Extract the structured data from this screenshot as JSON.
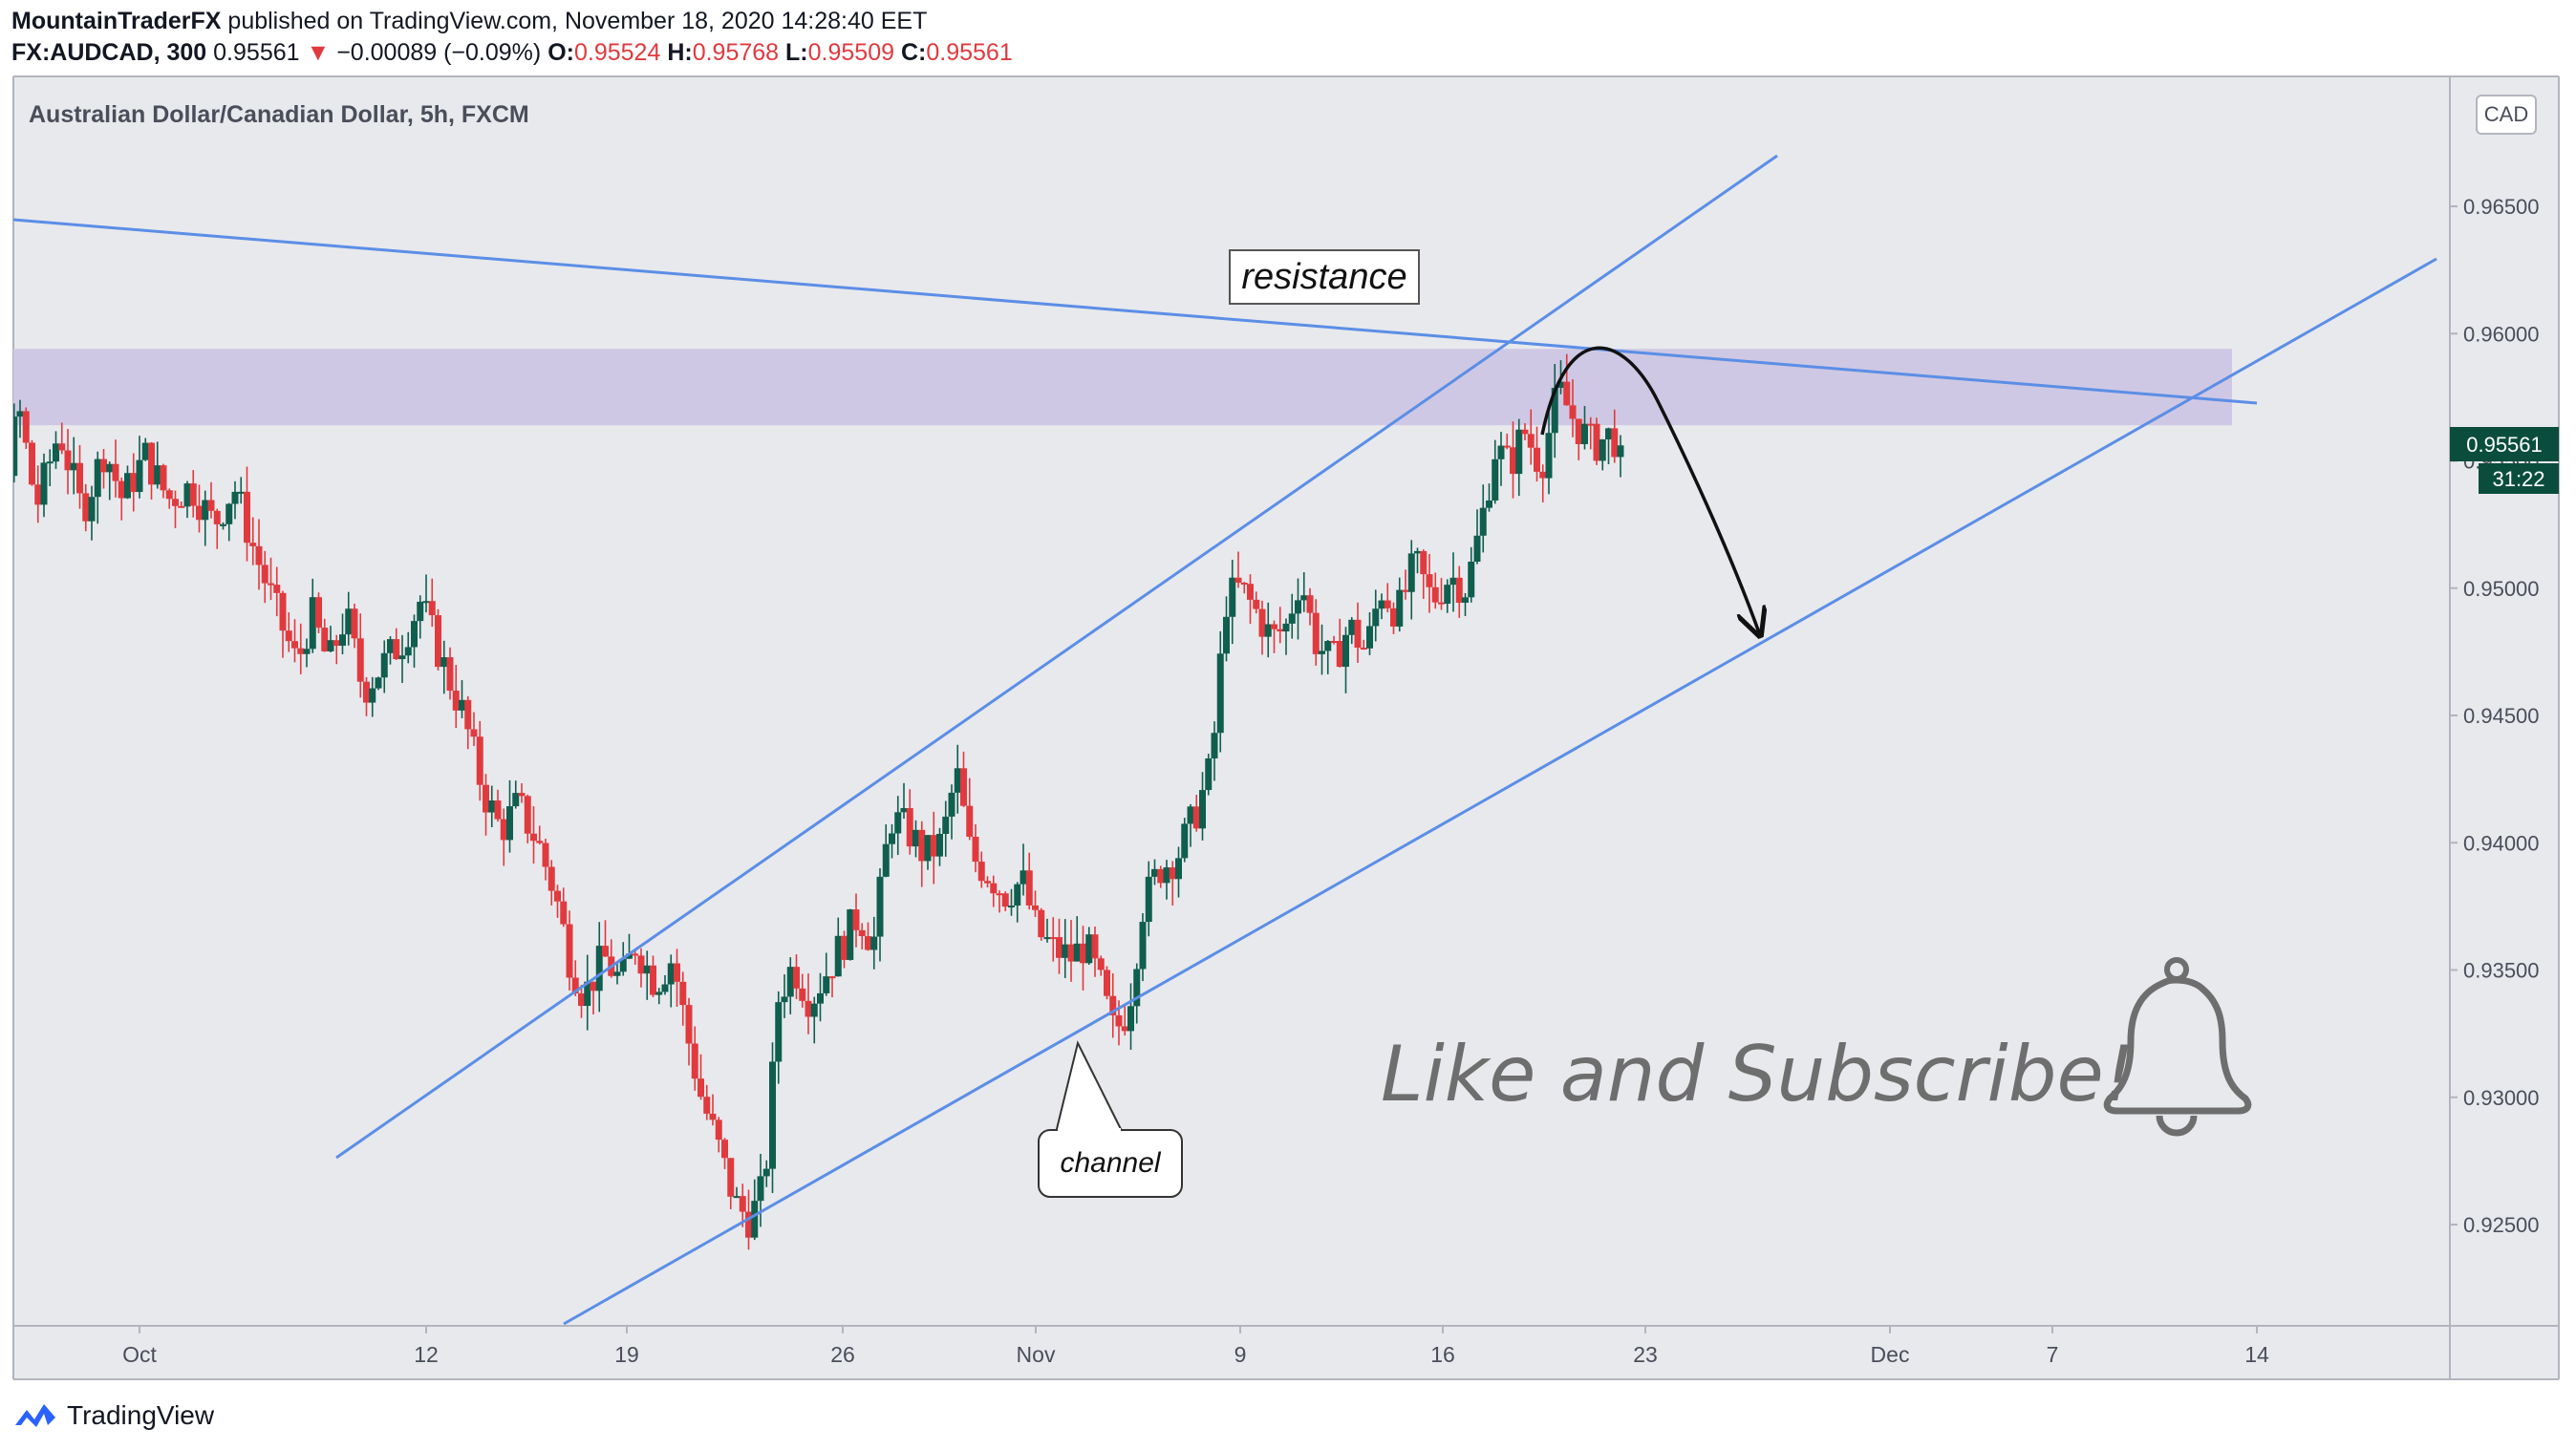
{
  "header": {
    "publisher": "MountainTraderFX",
    "published_text": " published on TradingView.com, November 18, 2020 14:28:40 EET",
    "symbol": "FX:AUDCAD, 300",
    "last": "0.95561",
    "change_arrow": "▼",
    "change": "−0.00089 (−0.09%)",
    "o_label": "O:",
    "o_value": "0.95524",
    "h_label": "H:",
    "h_value": "0.95768",
    "l_label": "L:",
    "l_value": "0.95509",
    "c_label": "C:",
    "c_value": "0.95561"
  },
  "footer": {
    "brand": "TradingView",
    "logo_icon": "tradingview-logo-icon"
  },
  "colors": {
    "up": "#26a69a",
    "down": "#ef5350",
    "candle_up": "#0f5e4e",
    "candle_down": "#e03a3e",
    "trendline": "#5b8ee6",
    "zone": "#cfc8e4",
    "background": "#ffffff",
    "label": "#131722",
    "price_badge": "#0b4d3c"
  },
  "chart_data": {
    "type": "candlestick",
    "title": "Australian Dollar/Canadian Dollar, 5h, FXCM",
    "currency": "CAD",
    "x_labels": [
      "Oct",
      "12",
      "19",
      "26",
      "Nov",
      "9",
      "16",
      "23",
      "Dec",
      "7",
      "14"
    ],
    "y_ticks": [
      "0.96500",
      "0.96000",
      "0.95500",
      "0.95000",
      "0.94500",
      "0.94000",
      "0.93500",
      "0.93000",
      "0.92500"
    ],
    "ylim": [
      0.92,
      0.97
    ],
    "last_price": "0.95561",
    "countdown": "31:22",
    "resistance_zone": [
      0.9564,
      0.9594
    ],
    "path_days": [
      [
        -7.5,
        0.9405
      ],
      [
        -6.8,
        0.9445
      ],
      [
        -5.8,
        0.9555
      ],
      [
        -5.2,
        0.9575
      ],
      [
        -4.8,
        0.954
      ],
      [
        -4.2,
        0.957
      ],
      [
        -3.6,
        0.9532
      ],
      [
        -2.8,
        0.9562
      ],
      [
        -2.0,
        0.953
      ],
      [
        -1.2,
        0.9555
      ],
      [
        -0.6,
        0.9535
      ],
      [
        0.2,
        0.9552
      ],
      [
        1.0,
        0.9535
      ],
      [
        1.8,
        0.954
      ],
      [
        2.6,
        0.9525
      ],
      [
        3.3,
        0.954
      ],
      [
        4.0,
        0.9515
      ],
      [
        4.8,
        0.949
      ],
      [
        5.5,
        0.947
      ],
      [
        6.0,
        0.949
      ],
      [
        6.6,
        0.947
      ],
      [
        7.2,
        0.949
      ],
      [
        7.8,
        0.946
      ],
      [
        8.5,
        0.947
      ],
      [
        9.2,
        0.948
      ],
      [
        9.8,
        0.9495
      ],
      [
        10.6,
        0.947
      ],
      [
        11.3,
        0.945
      ],
      [
        12.0,
        0.942
      ],
      [
        12.6,
        0.9405
      ],
      [
        13.2,
        0.9415
      ],
      [
        13.9,
        0.94
      ],
      [
        14.5,
        0.938
      ],
      [
        15.0,
        0.9355
      ],
      [
        15.5,
        0.934
      ],
      [
        16.2,
        0.9355
      ],
      [
        16.8,
        0.9345
      ],
      [
        17.3,
        0.936
      ],
      [
        18.0,
        0.9345
      ],
      [
        18.6,
        0.9355
      ],
      [
        19.1,
        0.9325
      ],
      [
        19.6,
        0.93
      ],
      [
        20.2,
        0.928
      ],
      [
        20.8,
        0.9258
      ],
      [
        21.3,
        0.9252
      ],
      [
        21.8,
        0.9265
      ],
      [
        22.3,
        0.934
      ],
      [
        22.8,
        0.9352
      ],
      [
        23.4,
        0.9338
      ],
      [
        24.0,
        0.935
      ],
      [
        24.6,
        0.9362
      ],
      [
        25.1,
        0.9372
      ],
      [
        25.6,
        0.936
      ],
      [
        26.2,
        0.941
      ],
      [
        26.8,
        0.9405
      ],
      [
        27.4,
        0.9395
      ],
      [
        28.0,
        0.94
      ],
      [
        28.5,
        0.9428
      ],
      [
        29.0,
        0.9395
      ],
      [
        29.6,
        0.9388
      ],
      [
        30.2,
        0.938
      ],
      [
        30.8,
        0.9385
      ],
      [
        31.3,
        0.9365
      ],
      [
        31.9,
        0.9358
      ],
      [
        32.5,
        0.9355
      ],
      [
        33.0,
        0.936
      ],
      [
        33.5,
        0.9345
      ],
      [
        34.0,
        0.9325
      ],
      [
        34.5,
        0.9335
      ],
      [
        35.0,
        0.9375
      ],
      [
        35.6,
        0.939
      ],
      [
        36.2,
        0.9395
      ],
      [
        36.8,
        0.941
      ],
      [
        37.4,
        0.943
      ],
      [
        37.9,
        0.9495
      ],
      [
        38.4,
        0.95
      ],
      [
        39.0,
        0.949
      ],
      [
        39.5,
        0.948
      ],
      [
        40.0,
        0.9485
      ],
      [
        40.5,
        0.9505
      ],
      [
        41.0,
        0.948
      ],
      [
        41.6,
        0.947
      ],
      [
        42.2,
        0.9485
      ],
      [
        42.8,
        0.9475
      ],
      [
        43.3,
        0.95
      ],
      [
        43.9,
        0.949
      ],
      [
        44.5,
        0.951
      ],
      [
        45.1,
        0.9495
      ],
      [
        45.7,
        0.9505
      ],
      [
        46.3,
        0.95
      ],
      [
        46.8,
        0.9525
      ],
      [
        47.3,
        0.9555
      ],
      [
        47.8,
        0.9548
      ],
      [
        48.3,
        0.9562
      ],
      [
        48.9,
        0.9548
      ],
      [
        49.5,
        0.9578
      ],
      [
        50.1,
        0.9565
      ],
      [
        50.7,
        0.9556
      ],
      [
        51.3,
        0.956
      ],
      [
        51.8,
        0.95561
      ]
    ],
    "annotations": {
      "resistance_label": "resistance",
      "channel_label": "channel",
      "cta_text": "Like and Subscribe!",
      "bell_icon": "bell-icon"
    }
  }
}
